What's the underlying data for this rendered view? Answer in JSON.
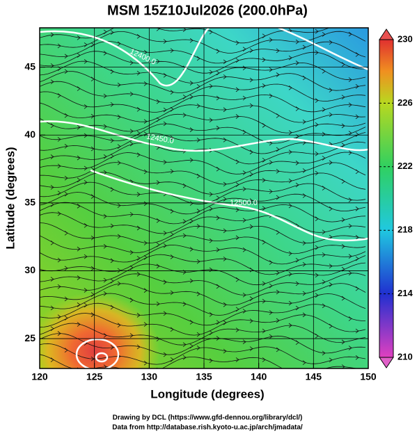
{
  "chart_data": {
    "type": "map",
    "title": "MSM 15Z10Jul2026 (200.0hPa)",
    "xlabel": "Longitude (degrees)",
    "ylabel": "Latitude  (degrees)",
    "xlim": [
      120,
      150
    ],
    "ylim": [
      22.8,
      47.9
    ],
    "xticks": [
      120,
      125,
      130,
      135,
      140,
      145,
      150
    ],
    "yticks": [
      25,
      30,
      35,
      40,
      45
    ],
    "grid": true,
    "colorbar": {
      "lim": [
        210,
        230
      ],
      "ticks": [
        210,
        214,
        218,
        222,
        226,
        230
      ]
    },
    "contour_labels": [
      "12400.0",
      "12450.0",
      "12500.0"
    ]
  },
  "footer": [
    "Drawing by DCL (https://www.gfd-dennou.org/library/dcl/)",
    "Data from http://database.rish.kyoto-u.ac.jp/arch/jmadata/"
  ]
}
